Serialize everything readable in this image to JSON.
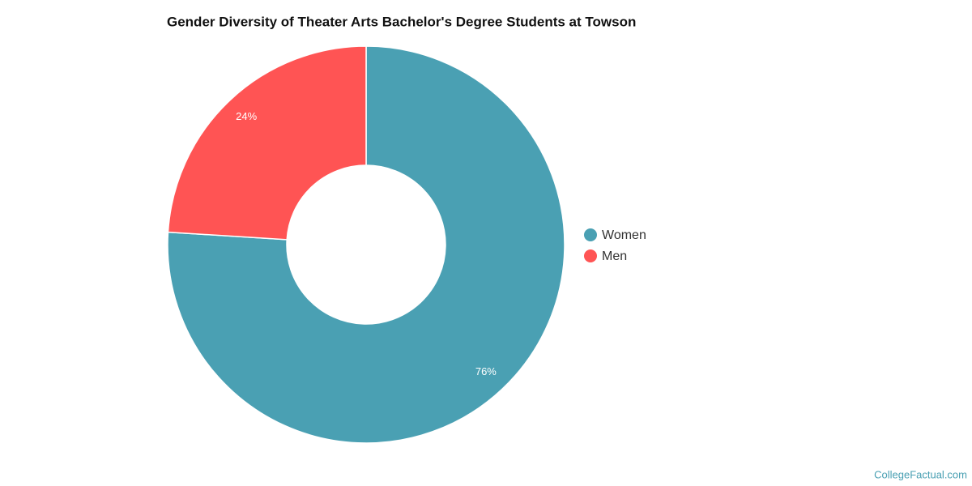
{
  "chart_data": {
    "type": "pie",
    "title": "Gender Diversity of Theater Arts Bachelor's Degree Students at Towson",
    "categories": [
      "Women",
      "Men"
    ],
    "values": [
      76,
      24
    ],
    "value_labels": [
      "76%",
      "24%"
    ],
    "colors": [
      "#4aa0b3",
      "#ff5454"
    ],
    "legend": "right",
    "source": "CollegeFactual.com"
  }
}
